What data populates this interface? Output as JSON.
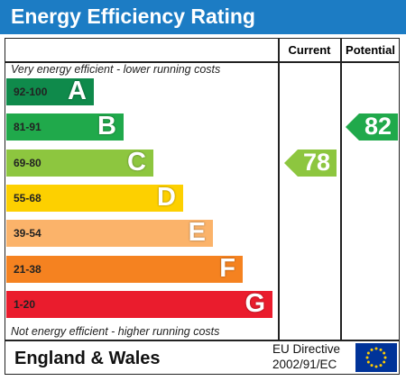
{
  "title": "Energy Efficiency Rating",
  "columns": {
    "current": "Current",
    "potential": "Potential"
  },
  "notes": {
    "top": "Very energy efficient - lower running costs",
    "bottom": "Not energy efficient - higher running costs"
  },
  "chart_data": {
    "type": "bar",
    "categories": [
      "92-100",
      "81-91",
      "69-80",
      "55-68",
      "39-54",
      "21-38",
      "1-20"
    ],
    "bands": [
      {
        "range": "92-100",
        "letter": "A",
        "color": "#0f8a4b"
      },
      {
        "range": "81-91",
        "letter": "B",
        "color": "#20a94b"
      },
      {
        "range": "69-80",
        "letter": "C",
        "color": "#8dc63f"
      },
      {
        "range": "55-68",
        "letter": "D",
        "color": "#fdd000"
      },
      {
        "range": "39-54",
        "letter": "E",
        "color": "#fbb36a"
      },
      {
        "range": "21-38",
        "letter": "F",
        "color": "#f58220"
      },
      {
        "range": "1-20",
        "letter": "G",
        "color": "#ea1c2d"
      }
    ],
    "current": {
      "value": 78,
      "band": "C",
      "color": "#8dc63f"
    },
    "potential": {
      "value": 82,
      "band": "B",
      "color": "#20a94b"
    }
  },
  "footer": {
    "region": "England & Wales",
    "directive_line1": "EU Directive",
    "directive_line2": "2002/91/EC"
  },
  "colors": {
    "title_bar": "#1c7cc4",
    "eu_flag": "#003399",
    "eu_stars": "#ffcc00"
  }
}
